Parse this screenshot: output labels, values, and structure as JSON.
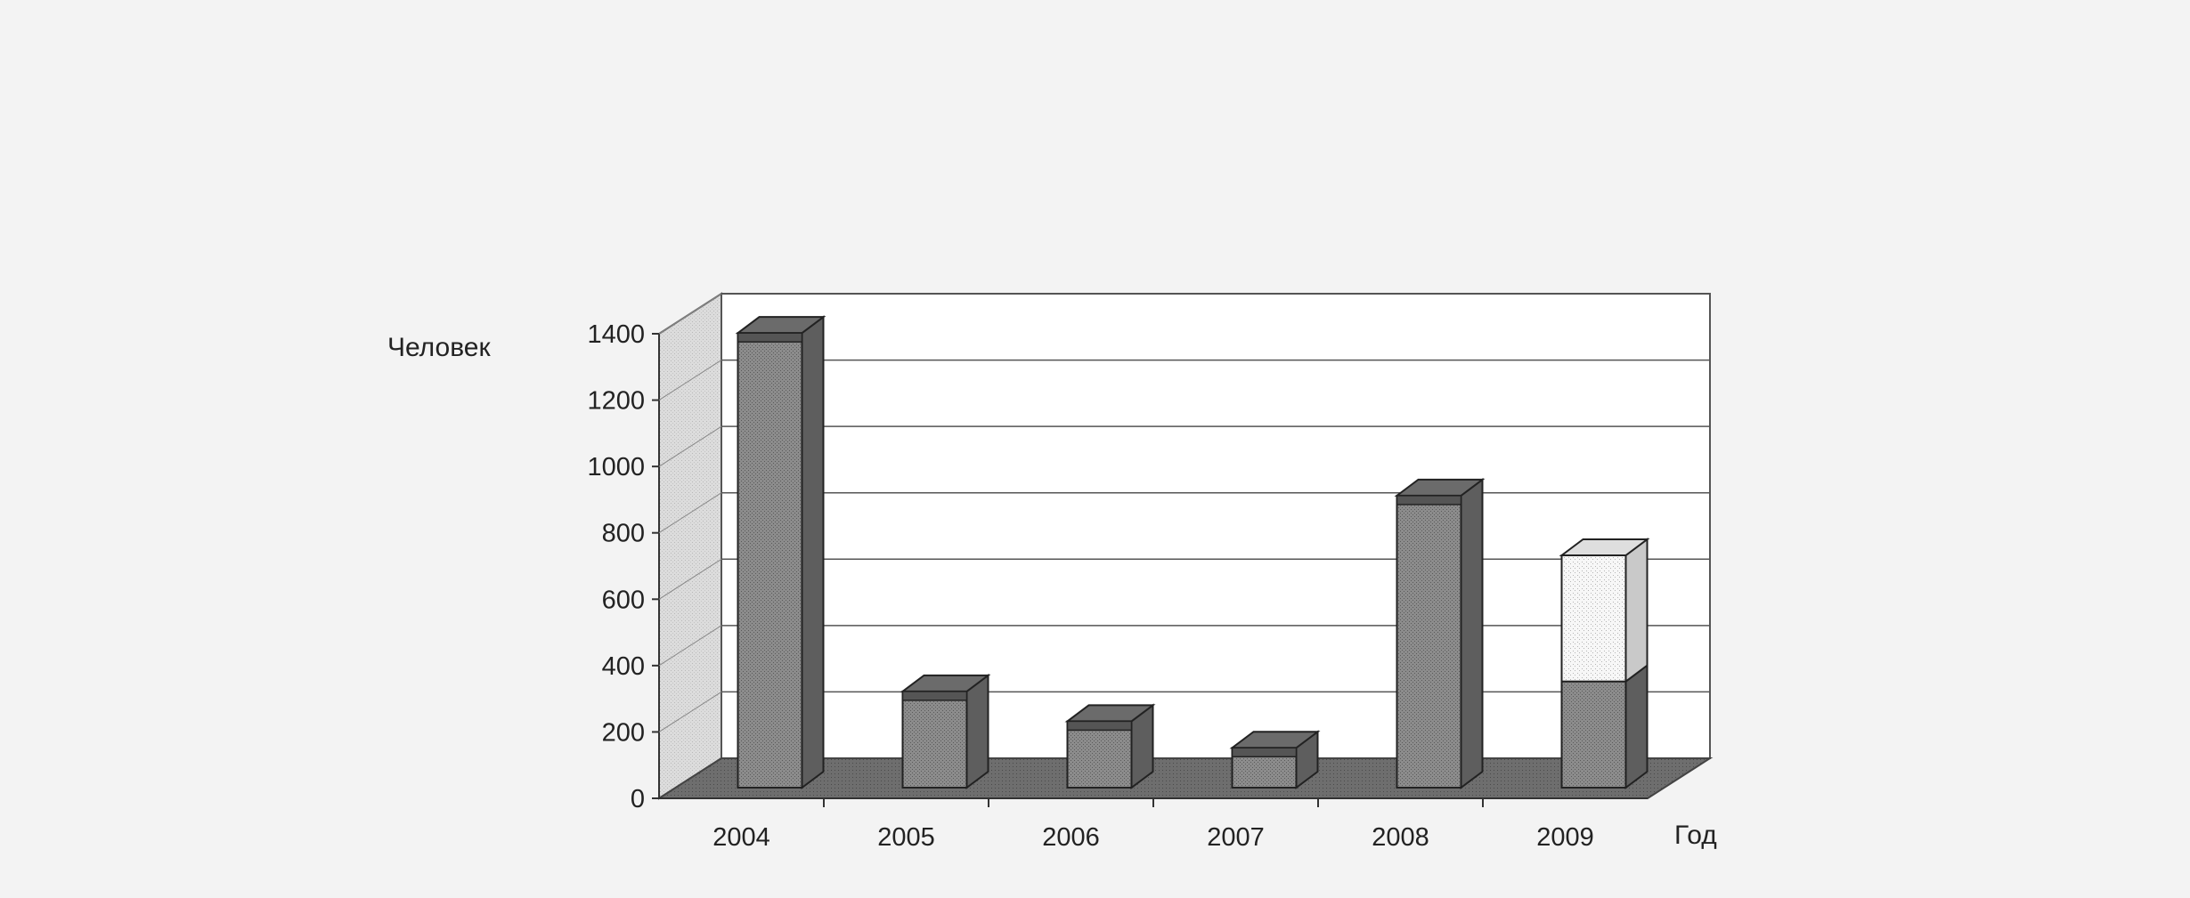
{
  "chart_data": {
    "type": "bar",
    "title": "",
    "xlabel": "Год",
    "ylabel": "Человек",
    "categories": [
      "2004",
      "2005",
      "2006",
      "2007",
      "2008",
      "2009"
    ],
    "ylim": [
      0,
      1400
    ],
    "yticks": [
      0,
      200,
      400,
      600,
      800,
      1000,
      1200,
      1400
    ],
    "grid": true,
    "style": "3d-stacked-column",
    "series": [
      {
        "values": [
          1370,
          290,
          200,
          120,
          880,
          320
        ],
        "color": "#9a9a9a"
      },
      {
        "values": [
          0,
          0,
          0,
          0,
          0,
          380
        ],
        "color": "#f4f4f4"
      }
    ]
  }
}
